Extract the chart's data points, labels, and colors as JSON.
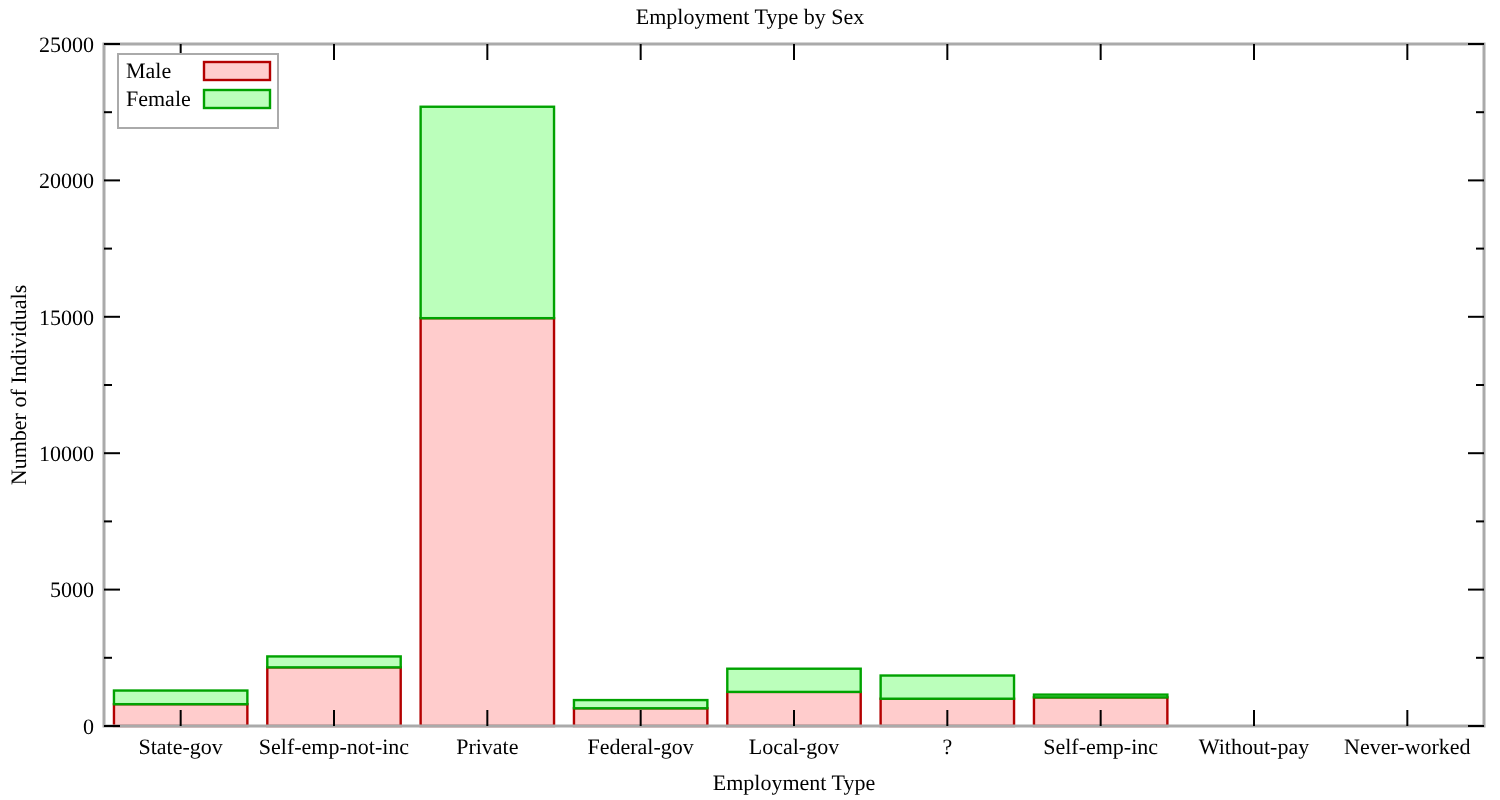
{
  "chart_data": {
    "type": "bar",
    "title": "Employment Type by Sex",
    "xlabel": "Employment Type",
    "ylabel": "Number of Individuals",
    "categories": [
      "State-gov",
      "Self-emp-not-inc",
      "Private",
      "Federal-gov",
      "Local-gov",
      "?",
      "Self-emp-inc",
      "Without-pay",
      "Never-worked"
    ],
    "stacked": true,
    "series": [
      {
        "name": "Male",
        "color": "#ffcccc",
        "values": [
          800,
          2150,
          14950,
          650,
          1250,
          1000,
          1050,
          0,
          0
        ]
      },
      {
        "name": "Female",
        "color": "#bbffbb",
        "values": [
          500,
          400,
          7750,
          300,
          850,
          850,
          100,
          0,
          0
        ]
      }
    ],
    "ylim": [
      0,
      25000
    ],
    "yticks": [
      0,
      {
        "value": 2500,
        "label": null
      },
      5000,
      {
        "value": 7500,
        "label": null
      },
      10000,
      {
        "value": 12500,
        "label": null
      },
      15000,
      {
        "value": 17500,
        "label": null
      },
      20000,
      {
        "value": 22500,
        "label": null
      },
      25000
    ],
    "legend": "top left"
  }
}
